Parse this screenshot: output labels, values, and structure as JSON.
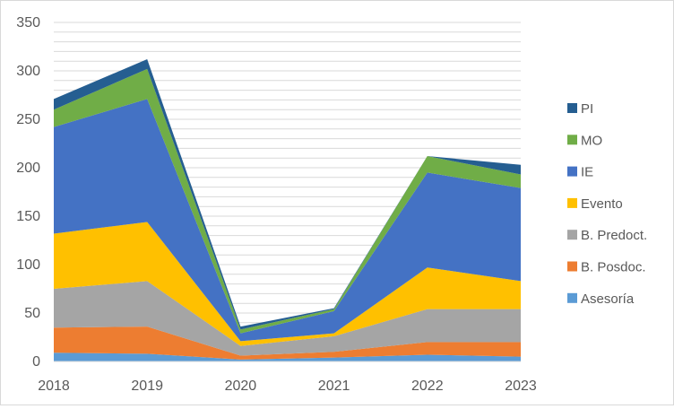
{
  "chart_data": {
    "type": "area",
    "stacked": true,
    "x": [
      "2018",
      "2019",
      "2020",
      "2021",
      "2022",
      "2023"
    ],
    "yticks": [
      "0",
      "50",
      "100",
      "150",
      "200",
      "250",
      "300",
      "350"
    ],
    "ylim": [
      0,
      350
    ],
    "grid": true,
    "grid_minor_step": 10,
    "legend_position": "right",
    "series": [
      {
        "name": "Asesoría",
        "color": "#5b9bd5",
        "values": [
          9,
          8,
          2,
          4,
          7,
          5
        ]
      },
      {
        "name": "B. Posdoc.",
        "color": "#ed7d31",
        "values": [
          26,
          28,
          4,
          6,
          13,
          15
        ]
      },
      {
        "name": "B. Predoct.",
        "color": "#a5a5a5",
        "values": [
          40,
          47,
          10,
          16,
          34,
          34
        ]
      },
      {
        "name": "Evento",
        "color": "#ffc000",
        "values": [
          57,
          61,
          5,
          3,
          43,
          29
        ]
      },
      {
        "name": "IE",
        "color": "#4472c4",
        "values": [
          110,
          127,
          8,
          23,
          98,
          96
        ]
      },
      {
        "name": "MO",
        "color": "#70ad47",
        "values": [
          18,
          31,
          4,
          2,
          17,
          14
        ]
      },
      {
        "name": "PI",
        "color": "#255e91",
        "values": [
          11,
          10,
          3,
          1,
          0,
          10
        ]
      }
    ]
  }
}
